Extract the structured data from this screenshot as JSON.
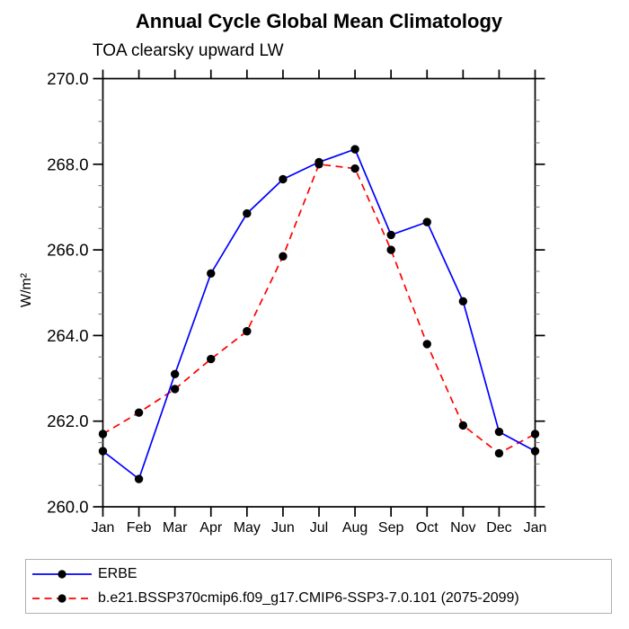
{
  "chart_data": {
    "type": "line",
    "title": "Annual Cycle Global Mean Climatology",
    "subtitle": "TOA clearsky upward LW",
    "ylabel": "W/m²",
    "xlabel": "",
    "x_categories": [
      "Jan",
      "Feb",
      "Mar",
      "Apr",
      "May",
      "Jun",
      "Jul",
      "Aug",
      "Sep",
      "Oct",
      "Nov",
      "Dec",
      "Jan"
    ],
    "ylim": [
      260.0,
      270.0
    ],
    "y_major_ticks": [
      260.0,
      262.0,
      264.0,
      266.0,
      268.0,
      270.0
    ],
    "y_tick_labels": [
      "260.0",
      "262.0",
      "264.0",
      "266.0",
      "268.0",
      "270.0"
    ],
    "y_minor_step": 0.5,
    "grid": false,
    "legend_position": "bottom-left-box",
    "axis_color": "#000000",
    "minor_tick_color": "#808080",
    "marker": "filled-circle",
    "marker_color": "#000000",
    "series": [
      {
        "name": "ERBE",
        "color": "#0000ff",
        "style": "solid",
        "values": [
          261.3,
          260.65,
          263.1,
          265.45,
          266.85,
          267.65,
          268.05,
          268.35,
          266.35,
          266.65,
          264.8,
          261.75,
          261.3
        ]
      },
      {
        "name": "b.e21.BSSP370cmip6.f09_g17.CMIP6-SSP3-7.0.101 (2075-2099)",
        "color": "#ff0000",
        "style": "dashed",
        "values": [
          261.7,
          262.2,
          262.75,
          263.45,
          264.1,
          265.85,
          268.0,
          267.9,
          266.0,
          263.8,
          261.9,
          261.25,
          261.7
        ]
      }
    ]
  }
}
